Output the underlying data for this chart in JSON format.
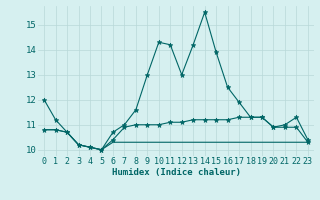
{
  "xlabel": "Humidex (Indice chaleur)",
  "background_color": "#d6f0f0",
  "line_color": "#006666",
  "grid_color": "#b8d8d8",
  "xlim": [
    -0.5,
    23.5
  ],
  "ylim": [
    9.75,
    15.75
  ],
  "yticks": [
    10,
    11,
    12,
    13,
    14,
    15
  ],
  "xticks": [
    0,
    1,
    2,
    3,
    4,
    5,
    6,
    7,
    8,
    9,
    10,
    11,
    12,
    13,
    14,
    15,
    16,
    17,
    18,
    19,
    20,
    21,
    22,
    23
  ],
  "line1": [
    12.0,
    11.2,
    10.7,
    10.2,
    10.1,
    10.0,
    10.7,
    11.0,
    11.6,
    13.0,
    14.3,
    14.2,
    13.0,
    14.2,
    15.5,
    13.9,
    12.5,
    11.9,
    11.3,
    11.3,
    10.9,
    11.0,
    11.3,
    10.4
  ],
  "line2": [
    10.8,
    10.8,
    10.7,
    10.2,
    10.1,
    10.0,
    10.4,
    10.9,
    11.0,
    11.0,
    11.0,
    11.1,
    11.1,
    11.2,
    11.2,
    11.2,
    11.2,
    11.3,
    11.3,
    11.3,
    10.9,
    10.9,
    10.9,
    10.3
  ],
  "line3": [
    10.8,
    10.8,
    10.7,
    10.2,
    10.1,
    10.0,
    10.3,
    10.3,
    10.3,
    10.3,
    10.3,
    10.3,
    10.3,
    10.3,
    10.3,
    10.3,
    10.3,
    10.3,
    10.3,
    10.3,
    10.3,
    10.3,
    10.3,
    10.3
  ],
  "tick_fontsize": 6.0,
  "xlabel_fontsize": 6.5,
  "marker_size": 3.5
}
